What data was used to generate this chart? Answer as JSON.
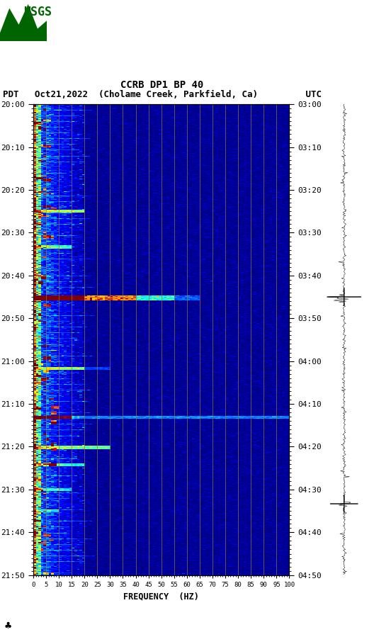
{
  "title_line1": "CCRB DP1 BP 40",
  "title_line2_pdt": "PDT   Oct21,2022  (Cholame Creek, Parkfield, Ca)         UTC",
  "xlabel": "FREQUENCY  (HZ)",
  "freq_min": 0,
  "freq_max": 100,
  "ytick_pdt": [
    "20:00",
    "20:10",
    "20:20",
    "20:30",
    "20:40",
    "20:50",
    "21:00",
    "21:10",
    "21:20",
    "21:30",
    "21:40",
    "21:50"
  ],
  "ytick_utc": [
    "03:00",
    "03:10",
    "03:20",
    "03:30",
    "03:40",
    "03:50",
    "04:00",
    "04:10",
    "04:20",
    "04:30",
    "04:40",
    "04:50"
  ],
  "xticks": [
    0,
    5,
    10,
    15,
    20,
    25,
    30,
    35,
    40,
    45,
    50,
    55,
    60,
    65,
    70,
    75,
    80,
    85,
    90,
    95,
    100
  ],
  "vgrid_freqs": [
    5,
    10,
    15,
    20,
    25,
    30,
    35,
    40,
    45,
    50,
    55,
    60,
    65,
    70,
    75,
    80,
    85,
    90,
    95,
    100
  ],
  "figure_width": 5.52,
  "figure_height": 8.92,
  "dpi": 100,
  "n_time": 660,
  "n_freq": 100,
  "seed": 42,
  "event1_rows": [
    270,
    278
  ],
  "event1_freq_extent": 55,
  "event2_rows": [
    438,
    445
  ],
  "event2_freq_extent": 100,
  "crosshair1_row": 270,
  "crosshair2_row": 560,
  "usgs_green": "#006400"
}
